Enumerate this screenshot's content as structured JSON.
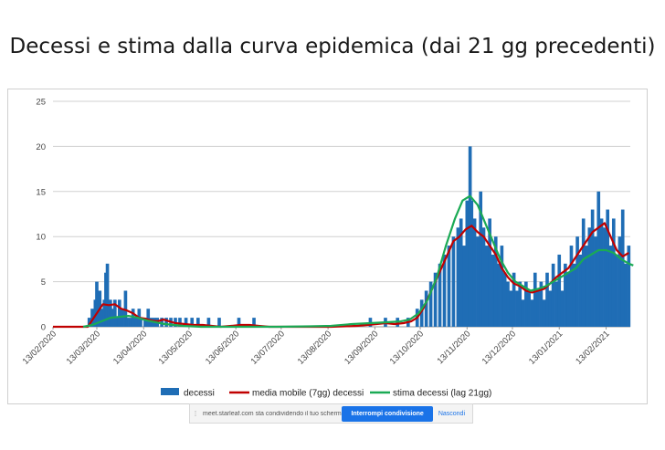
{
  "slide": {
    "title": "Decessi e stima dalla curva epidemica (dai 21 gg precedenti)"
  },
  "share_bar": {
    "message": "meet.starleaf.com sta condividendo il tuo schermo.",
    "stop_label": "Interrompi condivisione",
    "hide_label": "Nascondi"
  },
  "chart_data": {
    "type": "bar",
    "title": "",
    "xlabel": "",
    "ylabel": "",
    "x_start": "13/02/2020",
    "x_end": "01/03/2021",
    "ylim": [
      0,
      25
    ],
    "y_ticks": [
      0,
      5,
      10,
      15,
      20,
      25
    ],
    "x_tick_labels": [
      "13/02/2020",
      "13/03/2020",
      "13/04/2020",
      "13/05/2020",
      "13/06/2020",
      "13/07/2020",
      "13/08/2020",
      "13/09/2020",
      "13/10/2020",
      "13/11/2020",
      "13/12/2020",
      "13/01/2021",
      "13/02/2021"
    ],
    "grid": true,
    "legend_position": "bottom",
    "legend": [
      "decessi",
      "media mobile (7gg) decessi",
      "stima decessi (lag 21gg)"
    ],
    "colors": {
      "decessi": "#1f6db5",
      "media_mobile": "#c00000",
      "stima": "#1aaa55",
      "grid": "#d0d0d0"
    },
    "series": [
      {
        "name": "decessi",
        "kind": "bar",
        "points": [
          [
            "05/03/2020",
            0
          ],
          [
            "08/03/2020",
            1
          ],
          [
            "10/03/2020",
            2
          ],
          [
            "12/03/2020",
            3
          ],
          [
            "13/03/2020",
            5
          ],
          [
            "14/03/2020",
            1
          ],
          [
            "15/03/2020",
            4
          ],
          [
            "16/03/2020",
            2
          ],
          [
            "18/03/2020",
            3
          ],
          [
            "19/03/2020",
            6
          ],
          [
            "20/03/2020",
            7
          ],
          [
            "21/03/2020",
            2
          ],
          [
            "22/03/2020",
            3
          ],
          [
            "23/03/2020",
            2
          ],
          [
            "25/03/2020",
            3
          ],
          [
            "27/03/2020",
            1
          ],
          [
            "28/03/2020",
            3
          ],
          [
            "30/03/2020",
            2
          ],
          [
            "01/04/2020",
            4
          ],
          [
            "02/04/2020",
            1
          ],
          [
            "04/04/2020",
            1
          ],
          [
            "06/04/2020",
            2
          ],
          [
            "08/04/2020",
            1
          ],
          [
            "10/04/2020",
            2
          ],
          [
            "11/04/2020",
            1
          ],
          [
            "14/04/2020",
            1
          ],
          [
            "16/04/2020",
            2
          ],
          [
            "18/04/2020",
            1
          ],
          [
            "20/04/2020",
            1
          ],
          [
            "22/04/2020",
            1
          ],
          [
            "25/04/2020",
            1
          ],
          [
            "28/04/2020",
            1
          ],
          [
            "01/05/2020",
            1
          ],
          [
            "04/05/2020",
            1
          ],
          [
            "07/05/2020",
            1
          ],
          [
            "11/05/2020",
            1
          ],
          [
            "15/05/2020",
            1
          ],
          [
            "19/05/2020",
            1
          ],
          [
            "26/05/2020",
            1
          ],
          [
            "02/06/2020",
            1
          ],
          [
            "15/06/2020",
            1
          ],
          [
            "25/06/2020",
            1
          ],
          [
            "10/09/2020",
            1
          ],
          [
            "20/09/2020",
            1
          ],
          [
            "28/09/2020",
            1
          ],
          [
            "05/10/2020",
            1
          ],
          [
            "11/10/2020",
            2
          ],
          [
            "14/10/2020",
            3
          ],
          [
            "17/10/2020",
            4
          ],
          [
            "20/10/2020",
            5
          ],
          [
            "23/10/2020",
            6
          ],
          [
            "26/10/2020",
            7
          ],
          [
            "29/10/2020",
            8
          ],
          [
            "01/11/2020",
            9
          ],
          [
            "04/11/2020",
            10
          ],
          [
            "07/11/2020",
            11
          ],
          [
            "09/11/2020",
            12
          ],
          [
            "11/11/2020",
            9
          ],
          [
            "13/11/2020",
            14
          ],
          [
            "15/11/2020",
            20
          ],
          [
            "16/11/2020",
            14
          ],
          [
            "18/11/2020",
            12
          ],
          [
            "20/11/2020",
            10
          ],
          [
            "22/11/2020",
            15
          ],
          [
            "24/11/2020",
            11
          ],
          [
            "26/11/2020",
            9
          ],
          [
            "28/11/2020",
            12
          ],
          [
            "30/11/2020",
            8
          ],
          [
            "02/12/2020",
            10
          ],
          [
            "04/12/2020",
            7
          ],
          [
            "06/12/2020",
            9
          ],
          [
            "08/12/2020",
            6
          ],
          [
            "10/12/2020",
            5
          ],
          [
            "12/12/2020",
            4
          ],
          [
            "14/12/2020",
            6
          ],
          [
            "16/12/2020",
            4
          ],
          [
            "18/12/2020",
            5
          ],
          [
            "20/12/2020",
            3
          ],
          [
            "22/12/2020",
            5
          ],
          [
            "24/12/2020",
            4
          ],
          [
            "26/12/2020",
            3
          ],
          [
            "28/12/2020",
            6
          ],
          [
            "30/12/2020",
            4
          ],
          [
            "01/01/2021",
            5
          ],
          [
            "03/01/2021",
            3
          ],
          [
            "05/01/2021",
            6
          ],
          [
            "07/01/2021",
            4
          ],
          [
            "09/01/2021",
            7
          ],
          [
            "11/01/2021",
            5
          ],
          [
            "13/01/2021",
            8
          ],
          [
            "15/01/2021",
            4
          ],
          [
            "17/01/2021",
            7
          ],
          [
            "19/01/2021",
            6
          ],
          [
            "21/01/2021",
            9
          ],
          [
            "23/01/2021",
            7
          ],
          [
            "25/01/2021",
            10
          ],
          [
            "27/01/2021",
            8
          ],
          [
            "29/01/2021",
            12
          ],
          [
            "31/01/2021",
            9
          ],
          [
            "02/02/2021",
            11
          ],
          [
            "04/02/2021",
            13
          ],
          [
            "06/02/2021",
            10
          ],
          [
            "08/02/2021",
            15
          ],
          [
            "10/02/2021",
            12
          ],
          [
            "12/02/2021",
            11
          ],
          [
            "14/02/2021",
            13
          ],
          [
            "16/02/2021",
            9
          ],
          [
            "18/02/2021",
            12
          ],
          [
            "20/02/2021",
            8
          ],
          [
            "22/02/2021",
            10
          ],
          [
            "24/02/2021",
            13
          ],
          [
            "26/02/2021",
            7
          ],
          [
            "28/02/2021",
            9
          ]
        ]
      },
      {
        "name": "media mobile (7gg) decessi",
        "kind": "line",
        "points": [
          [
            "13/02/2020",
            0
          ],
          [
            "07/03/2020",
            0
          ],
          [
            "13/03/2020",
            1.5
          ],
          [
            "17/03/2020",
            2.5
          ],
          [
            "21/03/2020",
            2.4
          ],
          [
            "25/03/2020",
            2.5
          ],
          [
            "29/03/2020",
            2.0
          ],
          [
            "02/04/2020",
            1.8
          ],
          [
            "06/04/2020",
            1.5
          ],
          [
            "10/04/2020",
            1.0
          ],
          [
            "14/04/2020",
            0.9
          ],
          [
            "18/04/2020",
            0.7
          ],
          [
            "22/04/2020",
            0.6
          ],
          [
            "26/04/2020",
            0.8
          ],
          [
            "30/04/2020",
            0.6
          ],
          [
            "04/05/2020",
            0.4
          ],
          [
            "10/05/2020",
            0.3
          ],
          [
            "16/05/2020",
            0.2
          ],
          [
            "22/05/2020",
            0.2
          ],
          [
            "28/05/2020",
            0.1
          ],
          [
            "03/06/2020",
            0
          ],
          [
            "10/06/2020",
            0.1
          ],
          [
            "16/06/2020",
            0.2
          ],
          [
            "22/06/2020",
            0.2
          ],
          [
            "28/06/2020",
            0.1
          ],
          [
            "05/07/2020",
            0
          ],
          [
            "25/07/2020",
            0
          ],
          [
            "15/08/2020",
            0
          ],
          [
            "01/09/2020",
            0.1
          ],
          [
            "08/09/2020",
            0.2
          ],
          [
            "14/09/2020",
            0.3
          ],
          [
            "20/09/2020",
            0.4
          ],
          [
            "26/09/2020",
            0.3
          ],
          [
            "02/10/2020",
            0.4
          ],
          [
            "07/10/2020",
            0.6
          ],
          [
            "11/10/2020",
            1.0
          ],
          [
            "15/10/2020",
            2.0
          ],
          [
            "19/10/2020",
            3.5
          ],
          [
            "23/10/2020",
            5.0
          ],
          [
            "27/10/2020",
            6.5
          ],
          [
            "31/10/2020",
            8.0
          ],
          [
            "04/11/2020",
            9.5
          ],
          [
            "08/11/2020",
            10.0
          ],
          [
            "12/11/2020",
            10.8
          ],
          [
            "16/11/2020",
            11.2
          ],
          [
            "20/11/2020",
            10.5
          ],
          [
            "24/11/2020",
            10.0
          ],
          [
            "28/11/2020",
            9.0
          ],
          [
            "02/12/2020",
            8.0
          ],
          [
            "06/12/2020",
            6.5
          ],
          [
            "10/12/2020",
            5.5
          ],
          [
            "14/12/2020",
            4.8
          ],
          [
            "18/12/2020",
            4.5
          ],
          [
            "22/12/2020",
            4.0
          ],
          [
            "26/12/2020",
            3.8
          ],
          [
            "30/12/2020",
            4.0
          ],
          [
            "03/01/2021",
            4.2
          ],
          [
            "07/01/2021",
            4.8
          ],
          [
            "11/01/2021",
            5.5
          ],
          [
            "15/01/2021",
            6.0
          ],
          [
            "19/01/2021",
            6.5
          ],
          [
            "23/01/2021",
            7.5
          ],
          [
            "27/01/2021",
            8.5
          ],
          [
            "31/01/2021",
            9.5
          ],
          [
            "04/02/2021",
            10.5
          ],
          [
            "08/02/2021",
            11.0
          ],
          [
            "12/02/2021",
            11.5
          ],
          [
            "16/02/2021",
            10.0
          ],
          [
            "20/02/2021",
            8.5
          ],
          [
            "24/02/2021",
            7.8
          ],
          [
            "28/02/2021",
            8.2
          ]
        ]
      },
      {
        "name": "stima decessi (lag 21gg)",
        "kind": "line",
        "points": [
          [
            "04/03/2020",
            0
          ],
          [
            "10/03/2020",
            0.2
          ],
          [
            "16/03/2020",
            0.6
          ],
          [
            "22/03/2020",
            1.0
          ],
          [
            "28/03/2020",
            1.1
          ],
          [
            "03/04/2020",
            1.2
          ],
          [
            "09/04/2020",
            1.0
          ],
          [
            "15/04/2020",
            0.7
          ],
          [
            "21/04/2020",
            0.5
          ],
          [
            "27/04/2020",
            0.3
          ],
          [
            "03/05/2020",
            0.2
          ],
          [
            "09/05/2020",
            0.1
          ],
          [
            "15/05/2020",
            0.05
          ],
          [
            "21/05/2020",
            0
          ],
          [
            "15/06/2020",
            0
          ],
          [
            "10/07/2020",
            0
          ],
          [
            "01/08/2020",
            0.05
          ],
          [
            "15/08/2020",
            0.1
          ],
          [
            "29/08/2020",
            0.3
          ],
          [
            "10/09/2020",
            0.4
          ],
          [
            "20/09/2020",
            0.5
          ],
          [
            "30/09/2020",
            0.6
          ],
          [
            "06/10/2020",
            0.8
          ],
          [
            "12/10/2020",
            1.5
          ],
          [
            "18/10/2020",
            3.0
          ],
          [
            "24/10/2020",
            5.5
          ],
          [
            "30/10/2020",
            9.0
          ],
          [
            "05/11/2020",
            12.0
          ],
          [
            "10/11/2020",
            14.0
          ],
          [
            "15/11/2020",
            14.5
          ],
          [
            "20/11/2020",
            13.5
          ],
          [
            "25/11/2020",
            11.5
          ],
          [
            "30/11/2020",
            9.5
          ],
          [
            "05/12/2020",
            7.5
          ],
          [
            "10/12/2020",
            6.0
          ],
          [
            "15/12/2020",
            5.0
          ],
          [
            "20/12/2020",
            4.5
          ],
          [
            "25/12/2020",
            4.0
          ],
          [
            "30/12/2020",
            4.2
          ],
          [
            "04/01/2021",
            4.5
          ],
          [
            "09/01/2021",
            5.0
          ],
          [
            "14/01/2021",
            5.5
          ],
          [
            "19/01/2021",
            6.0
          ],
          [
            "24/01/2021",
            6.5
          ],
          [
            "29/01/2021",
            7.5
          ],
          [
            "03/02/2021",
            8.0
          ],
          [
            "08/02/2021",
            8.5
          ],
          [
            "13/02/2021",
            8.5
          ],
          [
            "18/02/2021",
            8.2
          ],
          [
            "23/02/2021",
            7.5
          ],
          [
            "28/02/2021",
            7.0
          ],
          [
            "03/03/2021",
            6.8
          ]
        ]
      }
    ]
  }
}
